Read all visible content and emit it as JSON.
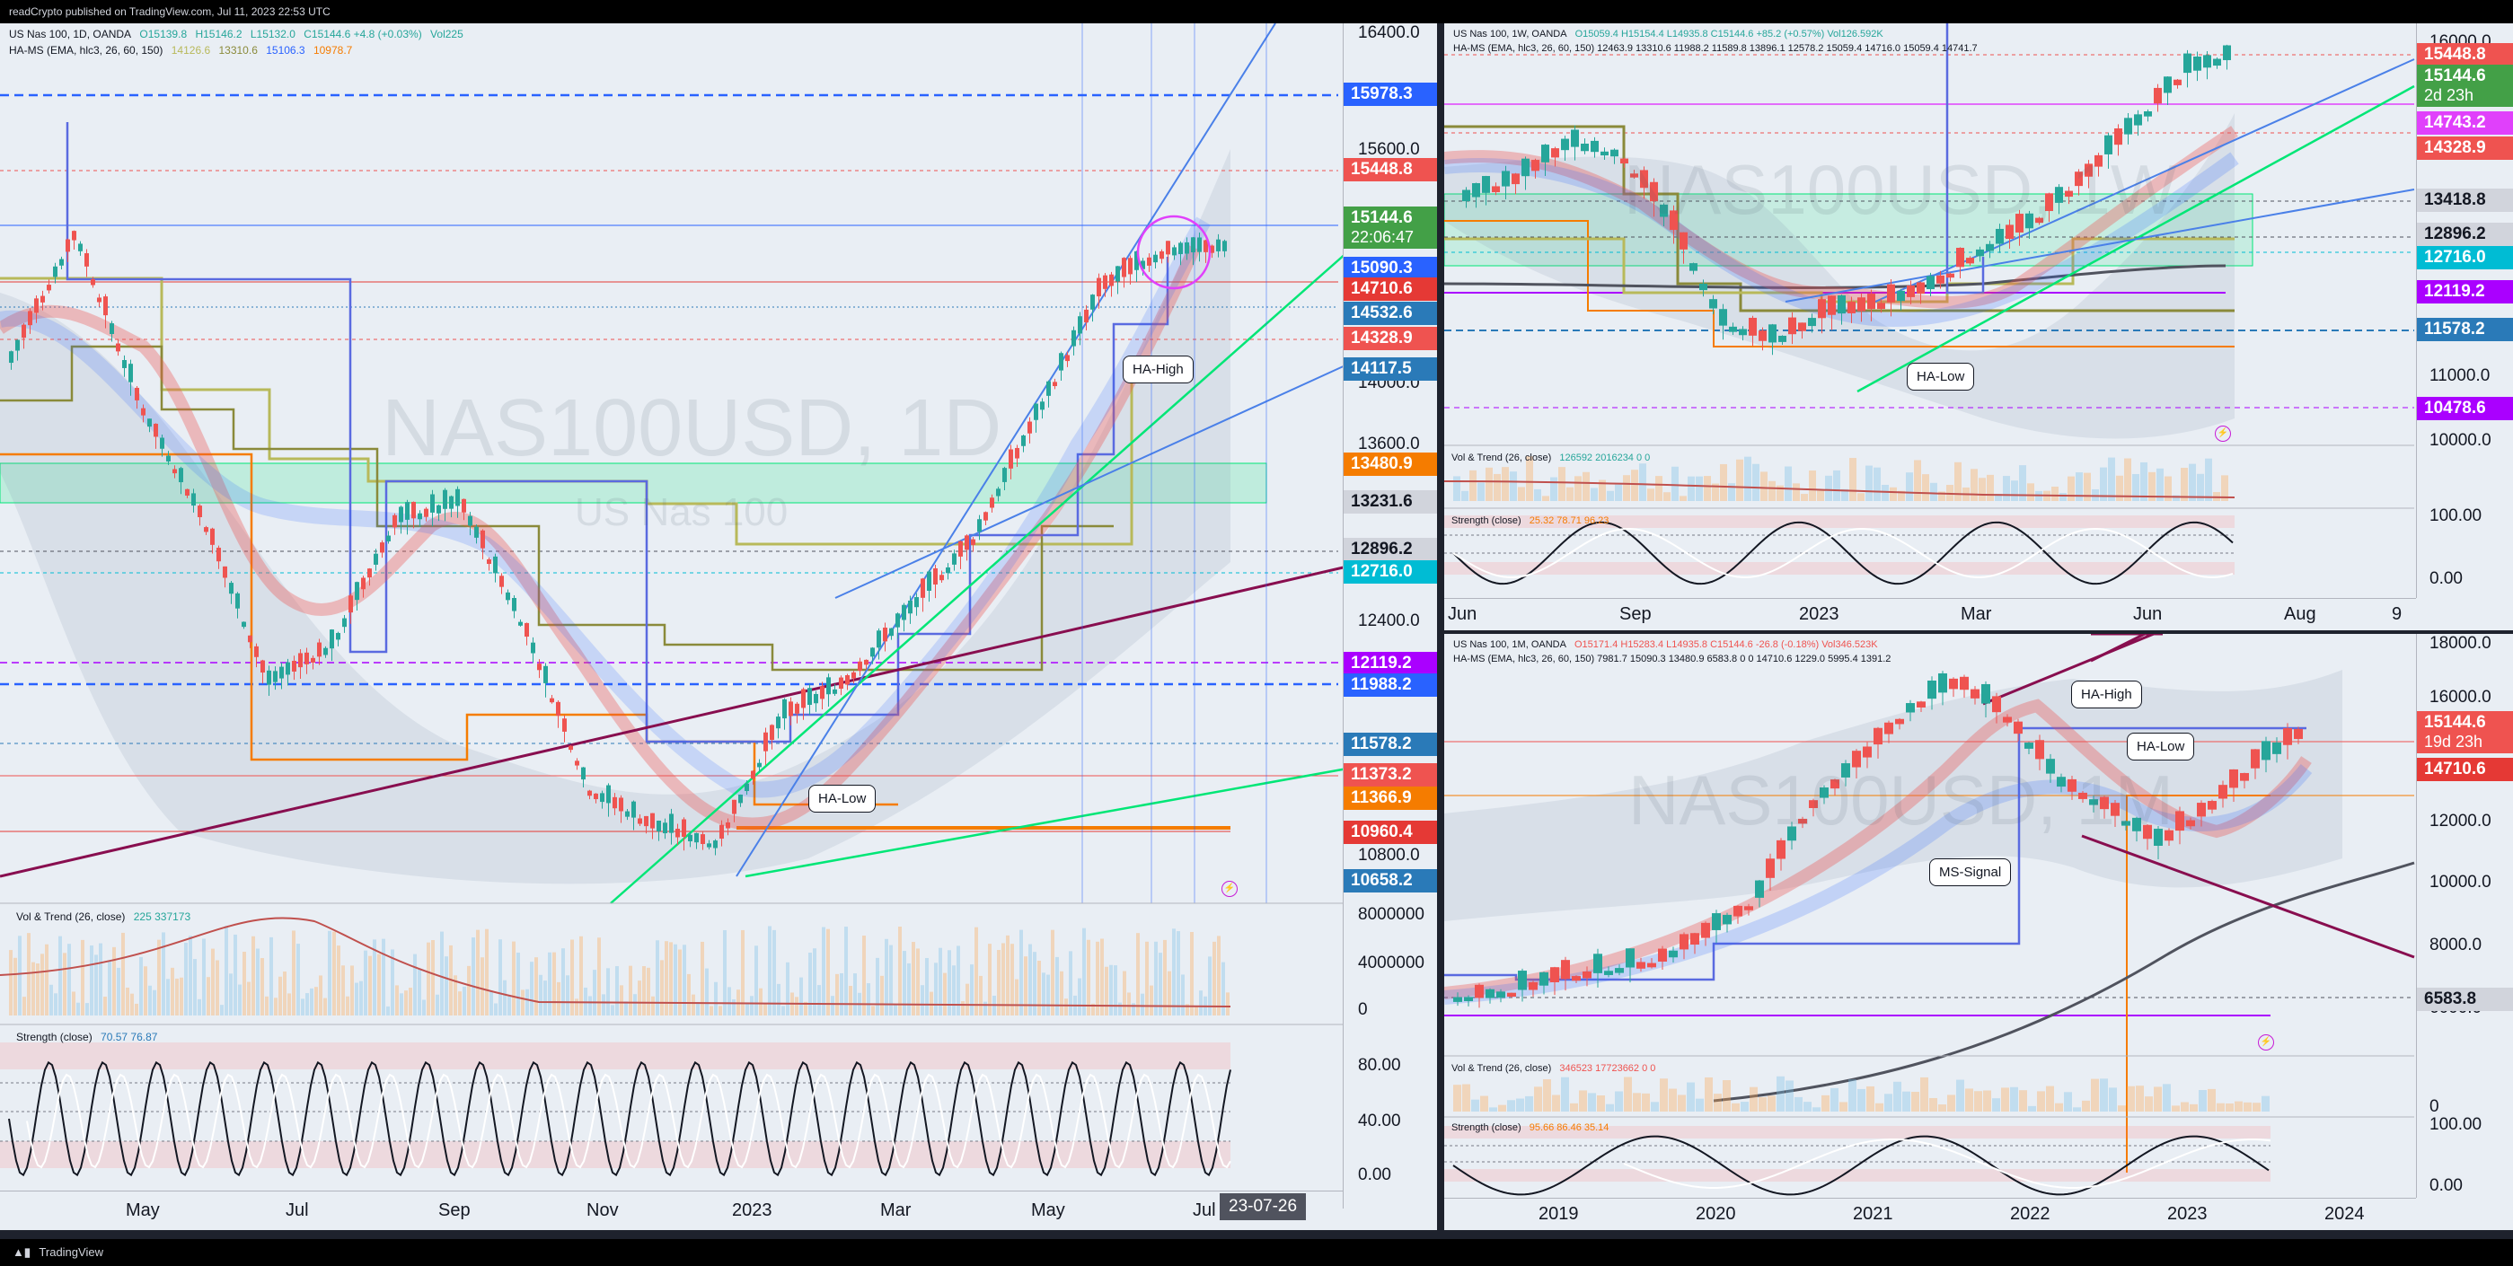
{
  "header": {
    "title": "readCrypto published on TradingView.com, Jul 11, 2023 22:53 UTC"
  },
  "footer": {
    "brand": "TradingView"
  },
  "colors": {
    "up": "#26a69a",
    "down": "#ef5350",
    "green": "#00e676",
    "blue": "#2962ff",
    "maroon": "#880e4f",
    "orange": "#f57c00",
    "violet": "#aa00ff",
    "magenta": "#e040fb"
  },
  "left": {
    "symbol": "US Nas 100, 1D, OANDA",
    "ohlc": {
      "o": "O15139.8",
      "h": "H15146.2",
      "l": "L15132.0",
      "c": "C15144.6 +4.8 (+0.03%)",
      "vol": "Vol225"
    },
    "indicator": {
      "name": "HA-MS (EMA, hlc3, 26, 60, 150)",
      "v1": "14126.6",
      "v2": "13310.6",
      "v3": "15106.3",
      "v4": "10978.7"
    },
    "watermark": "NAS100USD, 1D",
    "watermark_sub": "US Nas 100",
    "yticks": [
      "16400.0",
      "15600.0",
      "14000.0",
      "13600.0",
      "12400.0",
      "10800.0",
      "8000000",
      "4000000",
      "0",
      "80.00",
      "40.00",
      "0.00"
    ],
    "price_labels": [
      {
        "text": "15978.3",
        "color": "#2962ff"
      },
      {
        "text": "15448.8",
        "color": "#ef5350"
      },
      {
        "text": "15144.6",
        "sub": "22:06:47",
        "color": "#43a047"
      },
      {
        "text": "15090.3",
        "color": "#2962ff"
      },
      {
        "text": "14710.6",
        "color": "#e53935"
      },
      {
        "text": "14532.6",
        "color": "#2a7ab8"
      },
      {
        "text": "14328.9",
        "color": "#ef5350"
      },
      {
        "text": "14117.5",
        "color": "#2a7ab8"
      },
      {
        "text": "13480.9",
        "color": "#f57c00"
      },
      {
        "text": "13231.6",
        "color": "#d1d4dc",
        "dark": true
      },
      {
        "text": "12896.2",
        "color": "#d1d4dc",
        "dark": true
      },
      {
        "text": "12716.0",
        "color": "#00bcd4"
      },
      {
        "text": "12119.2",
        "color": "#aa00ff"
      },
      {
        "text": "11988.2",
        "color": "#2962ff"
      },
      {
        "text": "11578.2",
        "color": "#2a7ab8"
      },
      {
        "text": "11373.2",
        "color": "#ef5350"
      },
      {
        "text": "11366.9",
        "color": "#f57c00"
      },
      {
        "text": "10960.4",
        "color": "#e53935"
      },
      {
        "text": "10658.2",
        "color": "#2a7ab8"
      }
    ],
    "xticks": [
      "May",
      "Jul",
      "Sep",
      "Nov",
      "2023",
      "Mar",
      "May",
      "Jul"
    ],
    "date_flag": "23-07-26",
    "callouts": {
      "high": "HA-High",
      "low": "HA-Low"
    },
    "vol_label": "Vol & Trend (26, close)",
    "vol_values": "225  337173",
    "strength_label": "Strength (close)",
    "strength_values": "70.57  76.87"
  },
  "right_top": {
    "symbol": "US Nas 100, 1W, OANDA",
    "ohlc": "O15059.4 H15154.4 L14935.8 C15144.6 +85.2 (+0.57%) Vol126.592K",
    "indicator": "HA-MS (EMA, hlc3, 26, 60, 150)  12463.9  13310.6  11988.2  11589.8  13896.1  12578.2  15059.4  14716.0  15059.4  14741.7",
    "watermark": "NAS100USD, 1W",
    "yticks": [
      "16000.0",
      "14000.0",
      "11000.0",
      "10000.0",
      "100.00",
      "0.00"
    ],
    "price_labels": [
      {
        "text": "15448.8",
        "color": "#ef5350"
      },
      {
        "text": "15144.6",
        "sub": "2d 23h",
        "color": "#43a047"
      },
      {
        "text": "14743.2",
        "color": "#e040fb"
      },
      {
        "text": "14328.9",
        "color": "#ef5350"
      },
      {
        "text": "13418.8",
        "color": "#d1d4dc",
        "dark": true
      },
      {
        "text": "12896.2",
        "color": "#d1d4dc",
        "dark": true
      },
      {
        "text": "12716.0",
        "color": "#00bcd4"
      },
      {
        "text": "12119.2",
        "color": "#aa00ff"
      },
      {
        "text": "11578.2",
        "color": "#2a7ab8"
      },
      {
        "text": "10478.6",
        "color": "#aa00ff"
      }
    ],
    "xticks": [
      "Jun",
      "Sep",
      "2023",
      "Mar",
      "Jun",
      "Aug",
      "9"
    ],
    "callout_low": "HA-Low",
    "vol_label": "Vol & Trend (26, close)",
    "vol_values": "126592  2016234  0  0",
    "strength_label": "Strength (close)",
    "strength_values": "25.32  78.71  96.23"
  },
  "right_bottom": {
    "symbol": "US Nas 100, 1M, OANDA",
    "ohlc": "O15171.4 H15283.4 L14935.8 C15144.6 -26.8 (-0.18%) Vol346.523K",
    "indicator": "HA-MS (EMA, hlc3, 26, 60, 150)  7981.7  15090.3  13480.9  6583.8  0  0  14710.6  1229.0  5995.4  1391.2",
    "watermark": "NAS100USD, 1M",
    "yticks": [
      "18000.0",
      "16000.0",
      "12000.0",
      "10000.0",
      "8000.0",
      "6000.0",
      "0",
      "100.00",
      "0.00"
    ],
    "price_labels": [
      {
        "text": "15144.6",
        "sub": "19d 23h",
        "color": "#ef5350"
      },
      {
        "text": "14710.6",
        "color": "#e53935"
      },
      {
        "text": "6583.8",
        "color": "#d1d4dc",
        "dark": true
      }
    ],
    "xticks": [
      "2019",
      "2020",
      "2021",
      "2022",
      "2023",
      "2024"
    ],
    "callouts": {
      "high": "HA-High",
      "low": "HA-Low",
      "signal": "MS-Signal"
    },
    "vol_label": "Vol & Trend (26, close)",
    "vol_values": "346523  17723662  0  0",
    "strength_label": "Strength (close)",
    "strength_values": "95.66  86.46  35.14"
  }
}
